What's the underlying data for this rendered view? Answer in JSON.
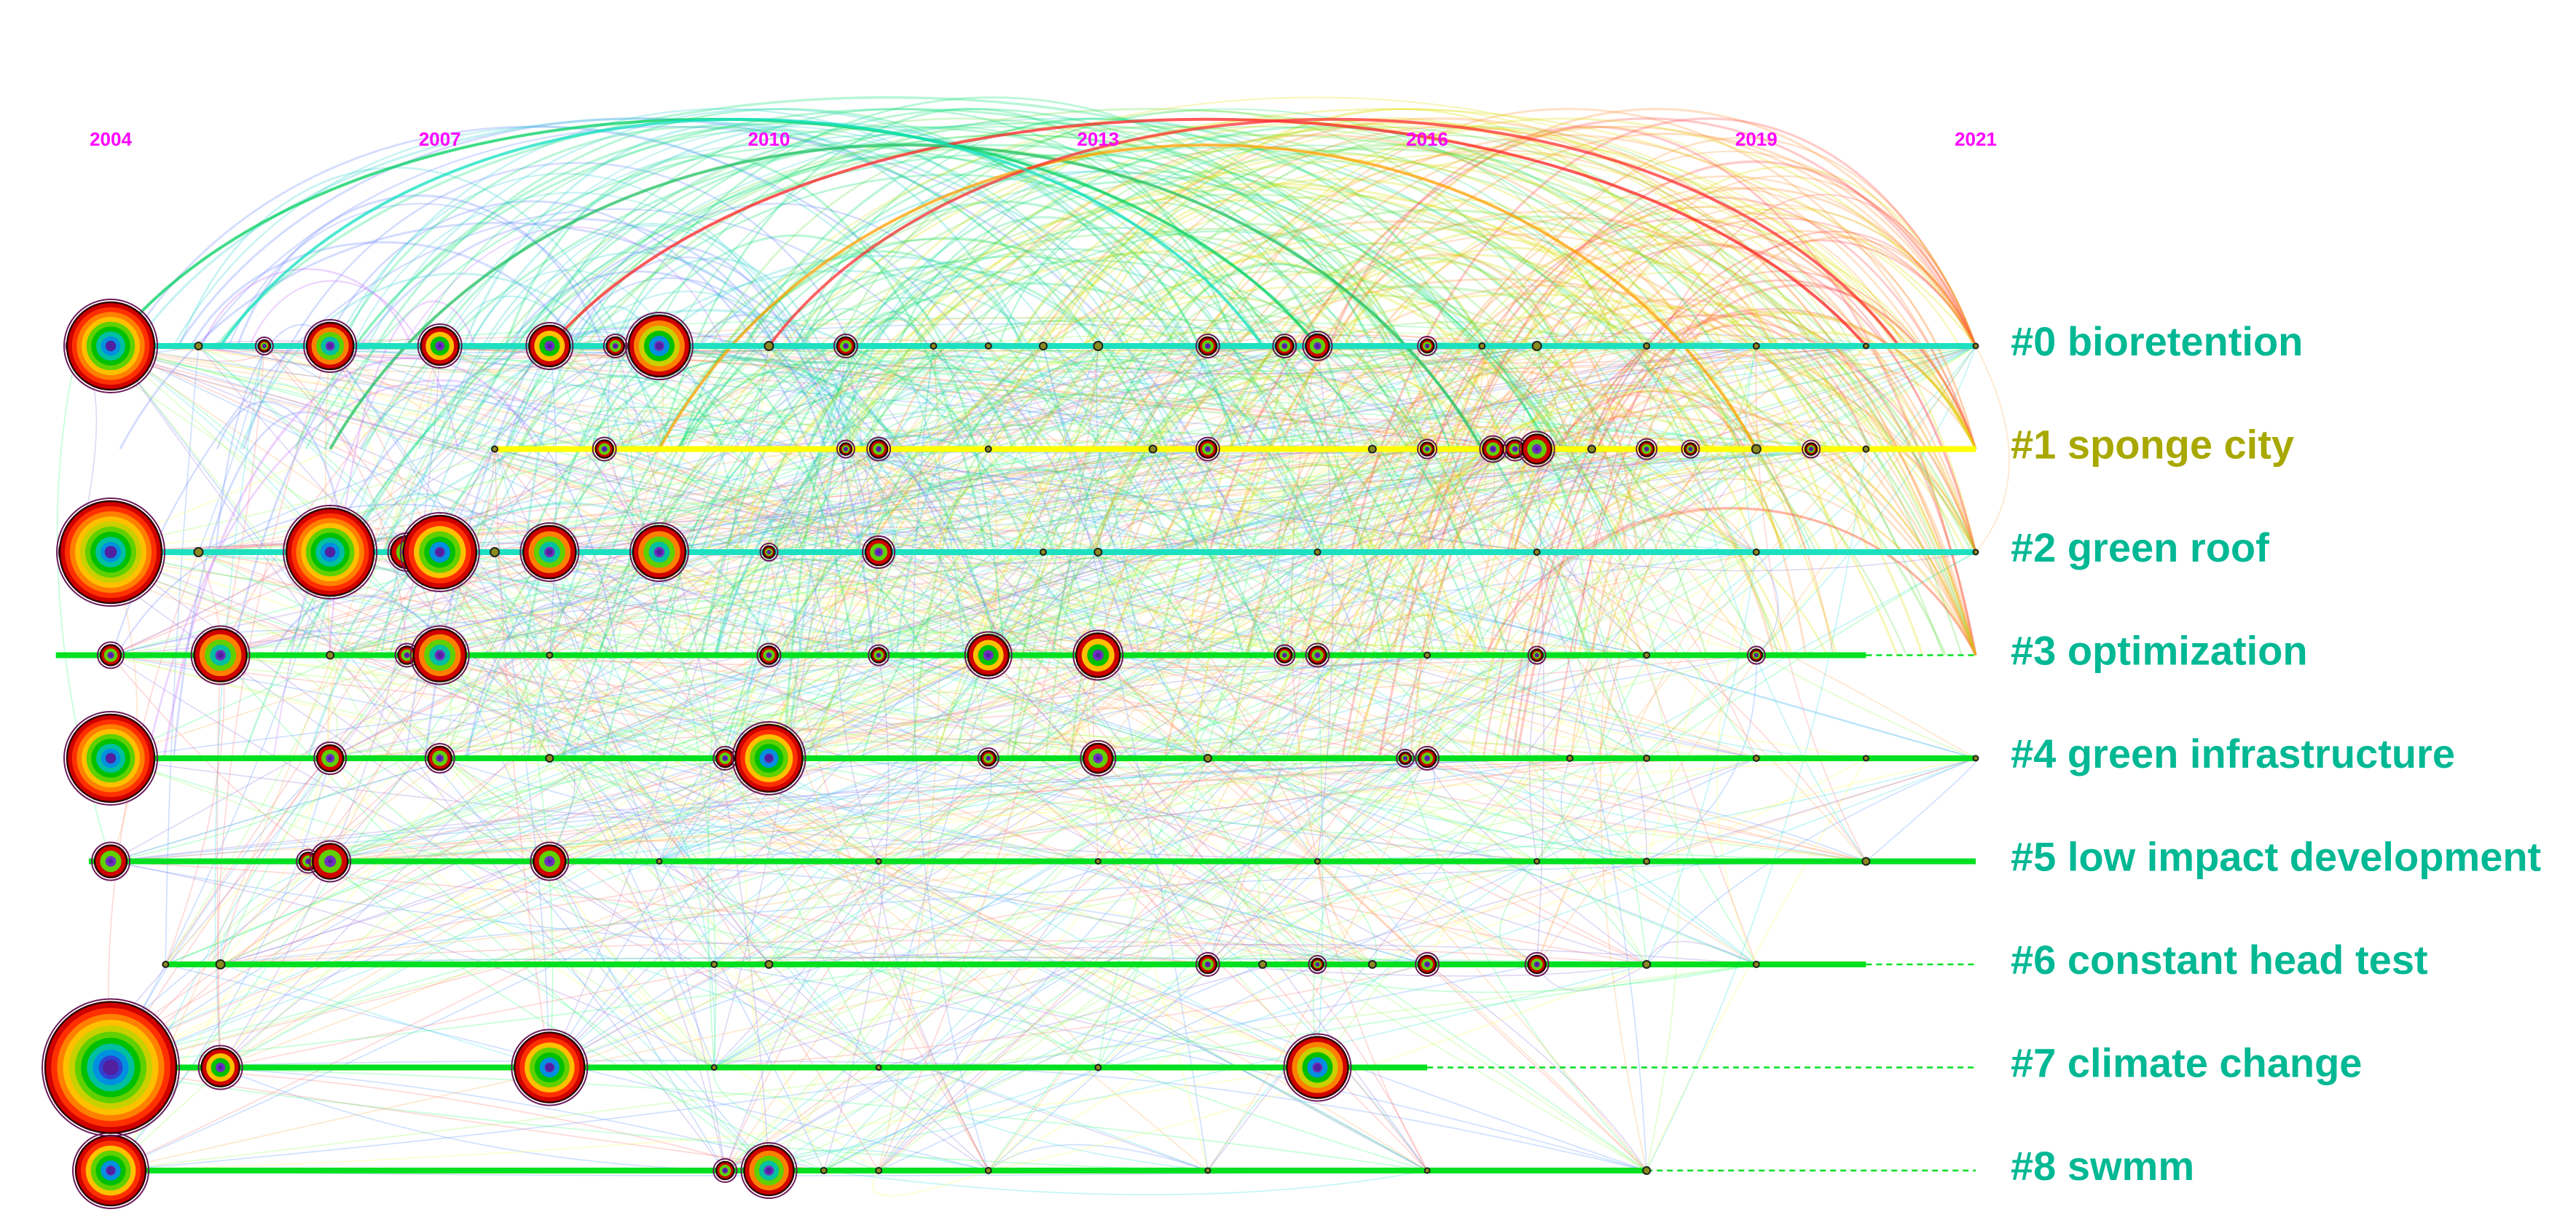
{
  "chart_data": {
    "type": "timeline",
    "x_axis": {
      "ticks": [
        "2004",
        "2007",
        "2010",
        "2013",
        "2016",
        "2019",
        "2021"
      ],
      "range": [
        2003.5,
        2021
      ],
      "label_color": "#ff00ff"
    },
    "clusters": [
      {
        "id": 0,
        "label": "#0 bioretention",
        "color": "#00b894",
        "line_color": "#1de0c0",
        "span": [
          2003.6,
          2021
        ],
        "dashed_tail": null,
        "nodes": [
          [
            2004,
            6
          ],
          [
            2003.7,
            1.2
          ],
          [
            2004.8,
            0.5
          ],
          [
            2005.4,
            0.8
          ],
          [
            2006,
            3.2
          ],
          [
            2007,
            2.6
          ],
          [
            2008,
            2.8
          ],
          [
            2008.6,
            1.2
          ],
          [
            2009,
            4.2
          ],
          [
            2010,
            0.6
          ],
          [
            2010.7,
            1.2
          ],
          [
            2011.5,
            0.4
          ],
          [
            2012,
            0.4
          ],
          [
            2012.5,
            0.5
          ],
          [
            2013,
            0.6
          ],
          [
            2014,
            1.2
          ],
          [
            2014.7,
            1.2
          ],
          [
            2015,
            1.6
          ],
          [
            2016,
            0.9
          ],
          [
            2016.5,
            0.4
          ],
          [
            2017,
            0.6
          ],
          [
            2018,
            0.4
          ],
          [
            2019,
            0.4
          ],
          [
            2020,
            0.3
          ],
          [
            2021,
            0.3
          ]
        ]
      },
      {
        "id": 1,
        "label": "#1 sponge city",
        "color": "#a8a800",
        "line_color": "#ffff00",
        "span": [
          2007.5,
          2021
        ],
        "dashed_tail": null,
        "nodes": [
          [
            2007.5,
            0.4
          ],
          [
            2008.5,
            1.2
          ],
          [
            2010.7,
            0.8
          ],
          [
            2011,
            1.2
          ],
          [
            2012,
            0.4
          ],
          [
            2013.5,
            0.5
          ],
          [
            2014,
            1.2
          ],
          [
            2015.5,
            0.5
          ],
          [
            2016,
            0.9
          ],
          [
            2016.6,
            1.4
          ],
          [
            2016.8,
            1.2
          ],
          [
            2017,
            2.0
          ],
          [
            2017.5,
            0.5
          ],
          [
            2018,
            1.0
          ],
          [
            2018.4,
            0.8
          ],
          [
            2019,
            0.6
          ],
          [
            2019.5,
            0.8
          ],
          [
            2020,
            0.4
          ]
        ]
      },
      {
        "id": 2,
        "label": "#2 green roof",
        "color": "#00b894",
        "line_color": "#1de0c0",
        "span": [
          2003.6,
          2021
        ],
        "dashed_tail": null,
        "nodes": [
          [
            2004,
            7
          ],
          [
            2003.7,
            2.2
          ],
          [
            2004.8,
            0.6
          ],
          [
            2006,
            6
          ],
          [
            2006.7,
            2.2
          ],
          [
            2007,
            5
          ],
          [
            2007.5,
            0.6
          ],
          [
            2008,
            3.6
          ],
          [
            2009,
            3.6
          ],
          [
            2010,
            0.8
          ],
          [
            2011,
            1.8
          ],
          [
            2012.5,
            0.4
          ],
          [
            2013,
            0.5
          ],
          [
            2015,
            0.4
          ],
          [
            2017,
            0.4
          ],
          [
            2019,
            0.4
          ],
          [
            2021,
            0.3
          ]
        ]
      },
      {
        "id": 3,
        "label": "#3 optimization",
        "color": "#00b894",
        "line_color": "#00e020",
        "span": [
          2003.5,
          2020
        ],
        "dashed_tail": [
          2020,
          2021
        ],
        "nodes": [
          [
            2004,
            1.4
          ],
          [
            2005,
            3.6
          ],
          [
            2006,
            0.5
          ],
          [
            2006.7,
            1.2
          ],
          [
            2007,
            3.6
          ],
          [
            2008,
            0.4
          ],
          [
            2010,
            1.2
          ],
          [
            2011,
            1.0
          ],
          [
            2012,
            2.8
          ],
          [
            2013,
            3.0
          ],
          [
            2014.7,
            1.0
          ],
          [
            2015,
            1.2
          ],
          [
            2016,
            0.4
          ],
          [
            2017,
            0.8
          ],
          [
            2018,
            0.4
          ],
          [
            2019,
            0.8
          ]
        ]
      },
      {
        "id": 4,
        "label": "#4 green infrastructure",
        "color": "#00b894",
        "line_color": "#00e020",
        "span": [
          2003.6,
          2021
        ],
        "dashed_tail": null,
        "nodes": [
          [
            2004,
            6
          ],
          [
            2006,
            1.8
          ],
          [
            2007,
            1.6
          ],
          [
            2008,
            0.5
          ],
          [
            2009.6,
            1.2
          ],
          [
            2010,
            4.6
          ],
          [
            2012,
            1.0
          ],
          [
            2013,
            2.0
          ],
          [
            2014,
            0.5
          ],
          [
            2015.8,
            0.8
          ],
          [
            2016,
            1.2
          ],
          [
            2017.3,
            0.4
          ],
          [
            2018,
            0.4
          ],
          [
            2019,
            0.4
          ],
          [
            2020,
            0.3
          ],
          [
            2021,
            0.3
          ]
        ]
      },
      {
        "id": 5,
        "label": "#5 low impact development",
        "color": "#00b894",
        "line_color": "#00e020",
        "span": [
          2003.8,
          2021
        ],
        "dashed_tail": null,
        "nodes": [
          [
            2004,
            2.2
          ],
          [
            2005.8,
            1.2
          ],
          [
            2006,
            2.4
          ],
          [
            2008,
            2.2
          ],
          [
            2009,
            0.3
          ],
          [
            2011,
            0.3
          ],
          [
            2013,
            0.3
          ],
          [
            2015,
            0.3
          ],
          [
            2017,
            0.3
          ],
          [
            2018,
            0.4
          ],
          [
            2020,
            0.5
          ]
        ]
      },
      {
        "id": 6,
        "label": "#6 constant head test",
        "color": "#00b894",
        "line_color": "#00e020",
        "span": [
          2004.5,
          2020
        ],
        "dashed_tail": [
          2020,
          2021
        ],
        "nodes": [
          [
            2004.5,
            0.4
          ],
          [
            2005,
            0.6
          ],
          [
            2009.5,
            0.4
          ],
          [
            2010,
            0.5
          ],
          [
            2014,
            1.2
          ],
          [
            2014.5,
            0.5
          ],
          [
            2015,
            0.8
          ],
          [
            2015.5,
            0.5
          ],
          [
            2016,
            1.2
          ],
          [
            2017,
            1.2
          ],
          [
            2018,
            0.5
          ],
          [
            2019,
            0.4
          ]
        ]
      },
      {
        "id": 7,
        "label": "#7 climate change",
        "color": "#00b894",
        "line_color": "#00e020",
        "span": [
          2003.6,
          2016
        ],
        "dashed_tail": [
          2016,
          2021
        ],
        "nodes": [
          [
            2004,
            9
          ],
          [
            2003.7,
            2.0
          ],
          [
            2005,
            2.6
          ],
          [
            2008,
            4.8
          ],
          [
            2009.5,
            0.3
          ],
          [
            2011,
            0.3
          ],
          [
            2013,
            0.4
          ],
          [
            2015,
            4.2
          ]
        ]
      },
      {
        "id": 8,
        "label": "#8 swmm",
        "color": "#00b894",
        "line_color": "#00e020",
        "span": [
          2004,
          2018
        ],
        "dashed_tail": [
          2018,
          2021
        ],
        "nodes": [
          [
            2004,
            4.8
          ],
          [
            2009.6,
            1.2
          ],
          [
            2010,
            3.4
          ],
          [
            2010.5,
            0.4
          ],
          [
            2011,
            0.4
          ],
          [
            2012,
            0.4
          ],
          [
            2014,
            0.3
          ],
          [
            2016,
            0.3
          ],
          [
            2018,
            0.5
          ]
        ]
      }
    ],
    "ring_colors": [
      "#d00000",
      "#ff3000",
      "#ff8000",
      "#ffc000",
      "#c8d000",
      "#60d000",
      "#00c000",
      "#00c0a0",
      "#0090e0",
      "#3040d0",
      "#7030c0"
    ],
    "link_palette": [
      "#ff8080",
      "#ffb060",
      "#ffff60",
      "#a0ff60",
      "#40ff80",
      "#40e0e0",
      "#60a0ff",
      "#a080e0"
    ],
    "arc_palette": [
      "#ff4040",
      "#ff9030",
      "#e0e000",
      "#60e040",
      "#00e070",
      "#30d0d0",
      "#6080ff",
      "#c060ff"
    ]
  }
}
